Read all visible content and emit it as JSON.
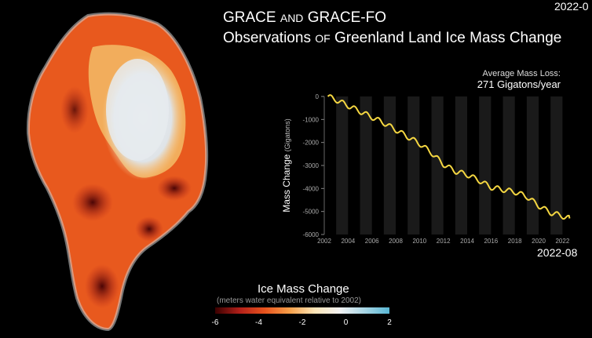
{
  "header": {
    "title_line1": [
      "GRACE ",
      "AND",
      " GRACE-FO"
    ],
    "title_line2": [
      "Observations ",
      "OF",
      " Greenland Land Ice Mass Change"
    ],
    "date_top": "2022-0",
    "avg_label": "Average Mass Loss:",
    "avg_value": "271 Gigatons/year",
    "date_bottom": "2022-08"
  },
  "legend": {
    "title": "Ice Mass Change",
    "subtitle": "(meters water equivalent relative to 2002)",
    "ticks": [
      "-6",
      "-4",
      "-2",
      "0",
      "2"
    ],
    "colors": [
      "#3a0000",
      "#b3201a",
      "#e8541e",
      "#f6a04a",
      "#fde6b8",
      "#f2f2f2",
      "#a9d6e5",
      "#59b7d4"
    ]
  },
  "chart_data": {
    "type": "line",
    "ylabel": "Mass Change (Gigatons)",
    "ylabel_main": "Mass Change",
    "ylabel_unit": "(Gigatons)",
    "ylim": [
      -6000,
      0
    ],
    "xlim": [
      2002,
      2022.7
    ],
    "yticks": [
      "0",
      "-1000",
      "-2000",
      "-3000",
      "-4000",
      "-5000",
      "-6000"
    ],
    "xticks": [
      "2002",
      "2004",
      "2006",
      "2008",
      "2010",
      "2012",
      "2014",
      "2016",
      "2018",
      "2020",
      "2022"
    ],
    "series": [
      {
        "x": [
          2002.3,
          2003,
          2004,
          2005,
          2006,
          2007,
          2008,
          2009,
          2010,
          2011,
          2012,
          2013,
          2014,
          2015,
          2016,
          2017,
          2018,
          2019,
          2020,
          2021,
          2022,
          2022.6
        ],
        "y": [
          0,
          -150,
          -400,
          -650,
          -900,
          -1150,
          -1450,
          -1750,
          -2050,
          -2450,
          -2950,
          -3250,
          -3400,
          -3650,
          -3950,
          -4050,
          -4150,
          -4350,
          -4750,
          -5050,
          -5200,
          -5300
        ]
      }
    ],
    "line_color": "#f5d742"
  }
}
